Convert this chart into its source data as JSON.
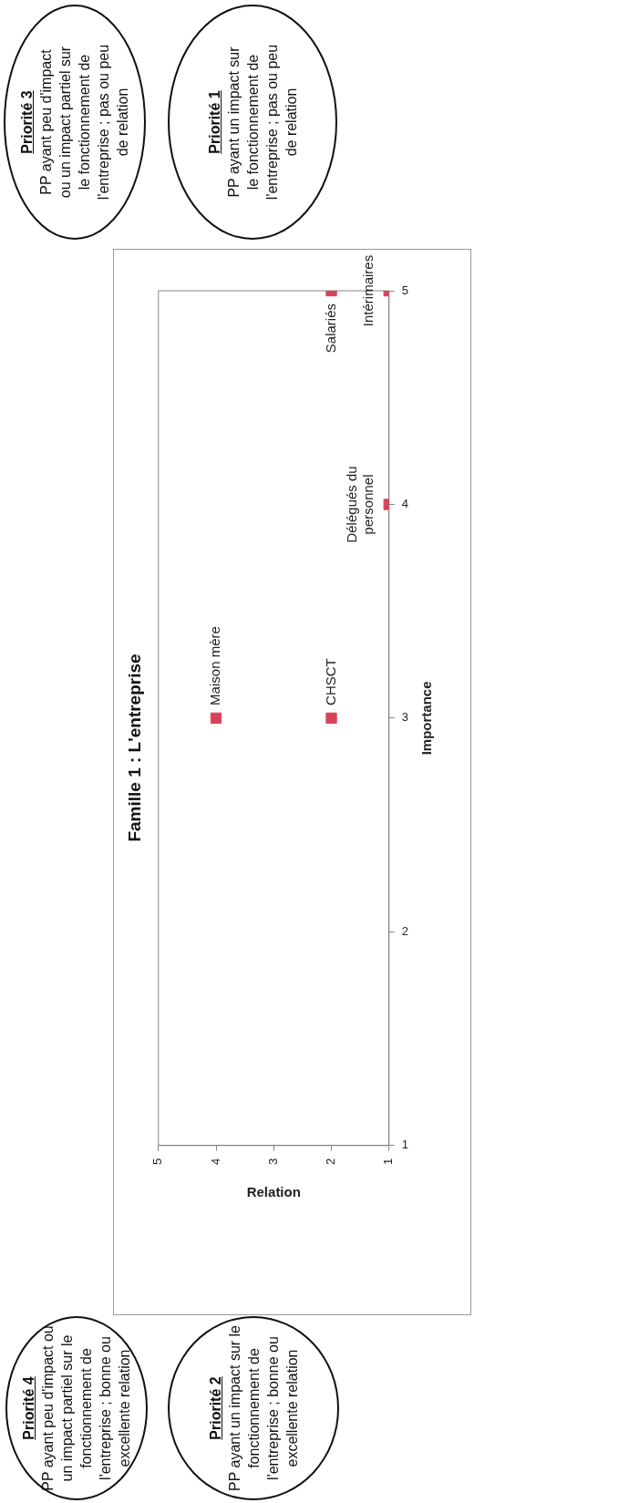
{
  "chart_data": {
    "type": "scatter",
    "title": "Famille 1 : L'entreprise",
    "xlabel": "Relation",
    "ylabel": "Importance",
    "x": [
      4,
      2,
      2,
      1,
      1
    ],
    "values": [
      3,
      3,
      5,
      4,
      5
    ],
    "color": "#d9435a",
    "marker": "square",
    "xlim": [
      5,
      1
    ],
    "xticks": [
      5,
      4,
      3,
      2,
      1
    ],
    "ylim": [
      1,
      5
    ],
    "yticks": [
      1,
      2,
      3,
      4,
      5
    ],
    "grid": false,
    "legend": false,
    "annotations": [
      {
        "text": "Maison mère",
        "x": 4,
        "y": 3
      },
      {
        "text": "CHSCT",
        "x": 2,
        "y": 3
      },
      {
        "text": "Salariés",
        "x": 2,
        "y": 5
      },
      {
        "text": "Délégués du personnel",
        "x": 1,
        "y": 4
      },
      {
        "text": "Intérimaires",
        "x": 1,
        "y": 5
      },
      "Priorité 4",
      "PP ayant peu d'impact ou un impact partiel sur le fonctionnement de l'entreprise ; bonne ou excellente relation",
      "Priorité 3",
      "PP ayant peu d'impact ou un impact partiel sur le fonctionnement de l'entreprise ; pas ou peu de relation",
      "Priorité 2",
      "PP ayant un impact sur le fonctionnement de l'entreprise ; bonne ou excellente relation",
      "Priorité 1",
      "PP ayant un impact sur le fonctionnement de l'entreprise ; pas ou peu de relation"
    ]
  }
}
